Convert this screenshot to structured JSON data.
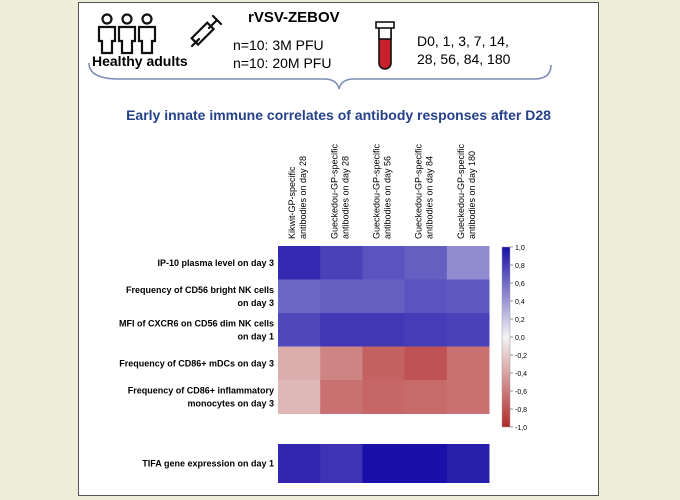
{
  "study": {
    "group_label": "Healthy adults",
    "vaccine": "rVSV-ZEBOV",
    "dose_lines": [
      "n=10: 3M PFU",
      "n=10: 20M PFU"
    ],
    "sampling_lines": [
      "D0, 1, 3,  7, 14,",
      "28, 56, 84, 180"
    ]
  },
  "heading": "Early innate immune correlates of antibody responses after D28",
  "colors": {
    "title_blue": "#25418a",
    "max_blue": "#1a0fa8",
    "max_red": "#b22a2a",
    "neutral": "#f3f3f3"
  },
  "icons": [
    "people-icon",
    "syringe-icon",
    "blood-tube-icon"
  ],
  "chart_data": {
    "type": "heatmap",
    "columns": [
      [
        "Kikwit-GP-specific",
        "antibodies on day 28"
      ],
      [
        "Gueckedou-GP-specific",
        "antibodies on day 28"
      ],
      [
        "Gueckedou-GP-specific",
        "antibodies on day 56"
      ],
      [
        "Gueckedou-GP-specific",
        "antibodies on day 84"
      ],
      [
        "Gueckedou-GP-specific",
        "antibodies on day 180"
      ]
    ],
    "rows": [
      [
        "IP-10 plasma level on day 3"
      ],
      [
        "Frequency of CD56 bright NK cells",
        "on day 3"
      ],
      [
        "MFI of CXCR6 on CD56 dim NK cells",
        "on day 1"
      ],
      [
        "Frequency of CD86+ mDCs on day 3"
      ],
      [
        "Frequency of CD86+ inflammatory",
        "monocytes on day 3"
      ]
    ],
    "values": [
      [
        0.88,
        0.78,
        0.7,
        0.65,
        0.45
      ],
      [
        0.62,
        0.65,
        0.65,
        0.7,
        0.68
      ],
      [
        0.75,
        0.82,
        0.82,
        0.8,
        0.78
      ],
      [
        -0.35,
        -0.55,
        -0.72,
        -0.8,
        -0.65
      ],
      [
        -0.3,
        -0.65,
        -0.7,
        -0.68,
        -0.65
      ]
    ],
    "separate_row": {
      "label": "TIFA gene expression on day 1",
      "values": [
        0.9,
        0.84,
        1.0,
        1.0,
        0.93
      ]
    },
    "colorbar": {
      "range": [
        -1.0,
        1.0
      ],
      "ticks": [
        "1,0",
        "0,8",
        "0,6",
        "0,4",
        "0,2",
        "0,0",
        "-0,2",
        "-0,4",
        "-0,6",
        "-0,8",
        "-1,0"
      ]
    }
  }
}
